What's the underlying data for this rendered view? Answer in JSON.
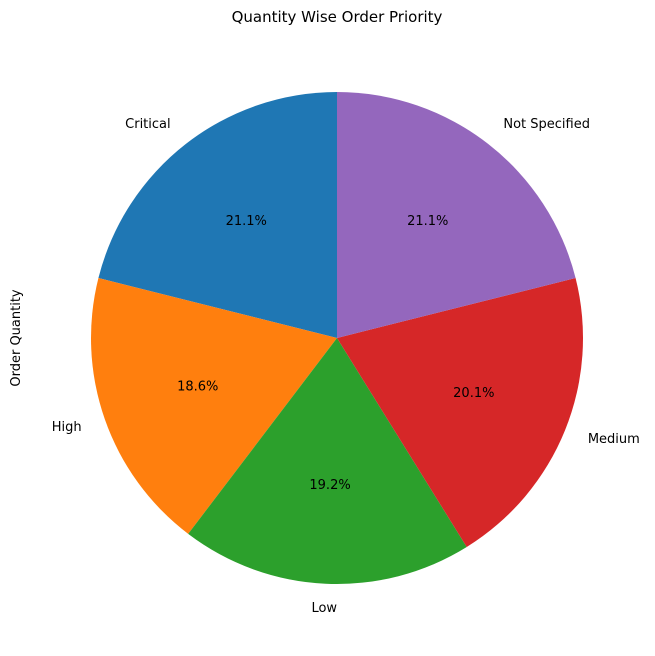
{
  "chart_data": {
    "type": "pie",
    "title": "Quantity Wise Order Priority",
    "ylabel": "Order Quantity",
    "xlabel": "",
    "categories": [
      "Critical",
      "High",
      "Low",
      "Medium",
      "Not Specified"
    ],
    "values": [
      21.1,
      18.6,
      19.2,
      20.1,
      21.1
    ],
    "value_labels": [
      "21.1%",
      "18.6%",
      "19.2%",
      "20.1%",
      "21.1%"
    ],
    "colors": [
      "#1f77b4",
      "#ff7f0e",
      "#2ca02c",
      "#d62728",
      "#9467bd"
    ],
    "start_angle_deg": 90,
    "direction": "counterclockwise",
    "legend": "none",
    "grid": false
  }
}
